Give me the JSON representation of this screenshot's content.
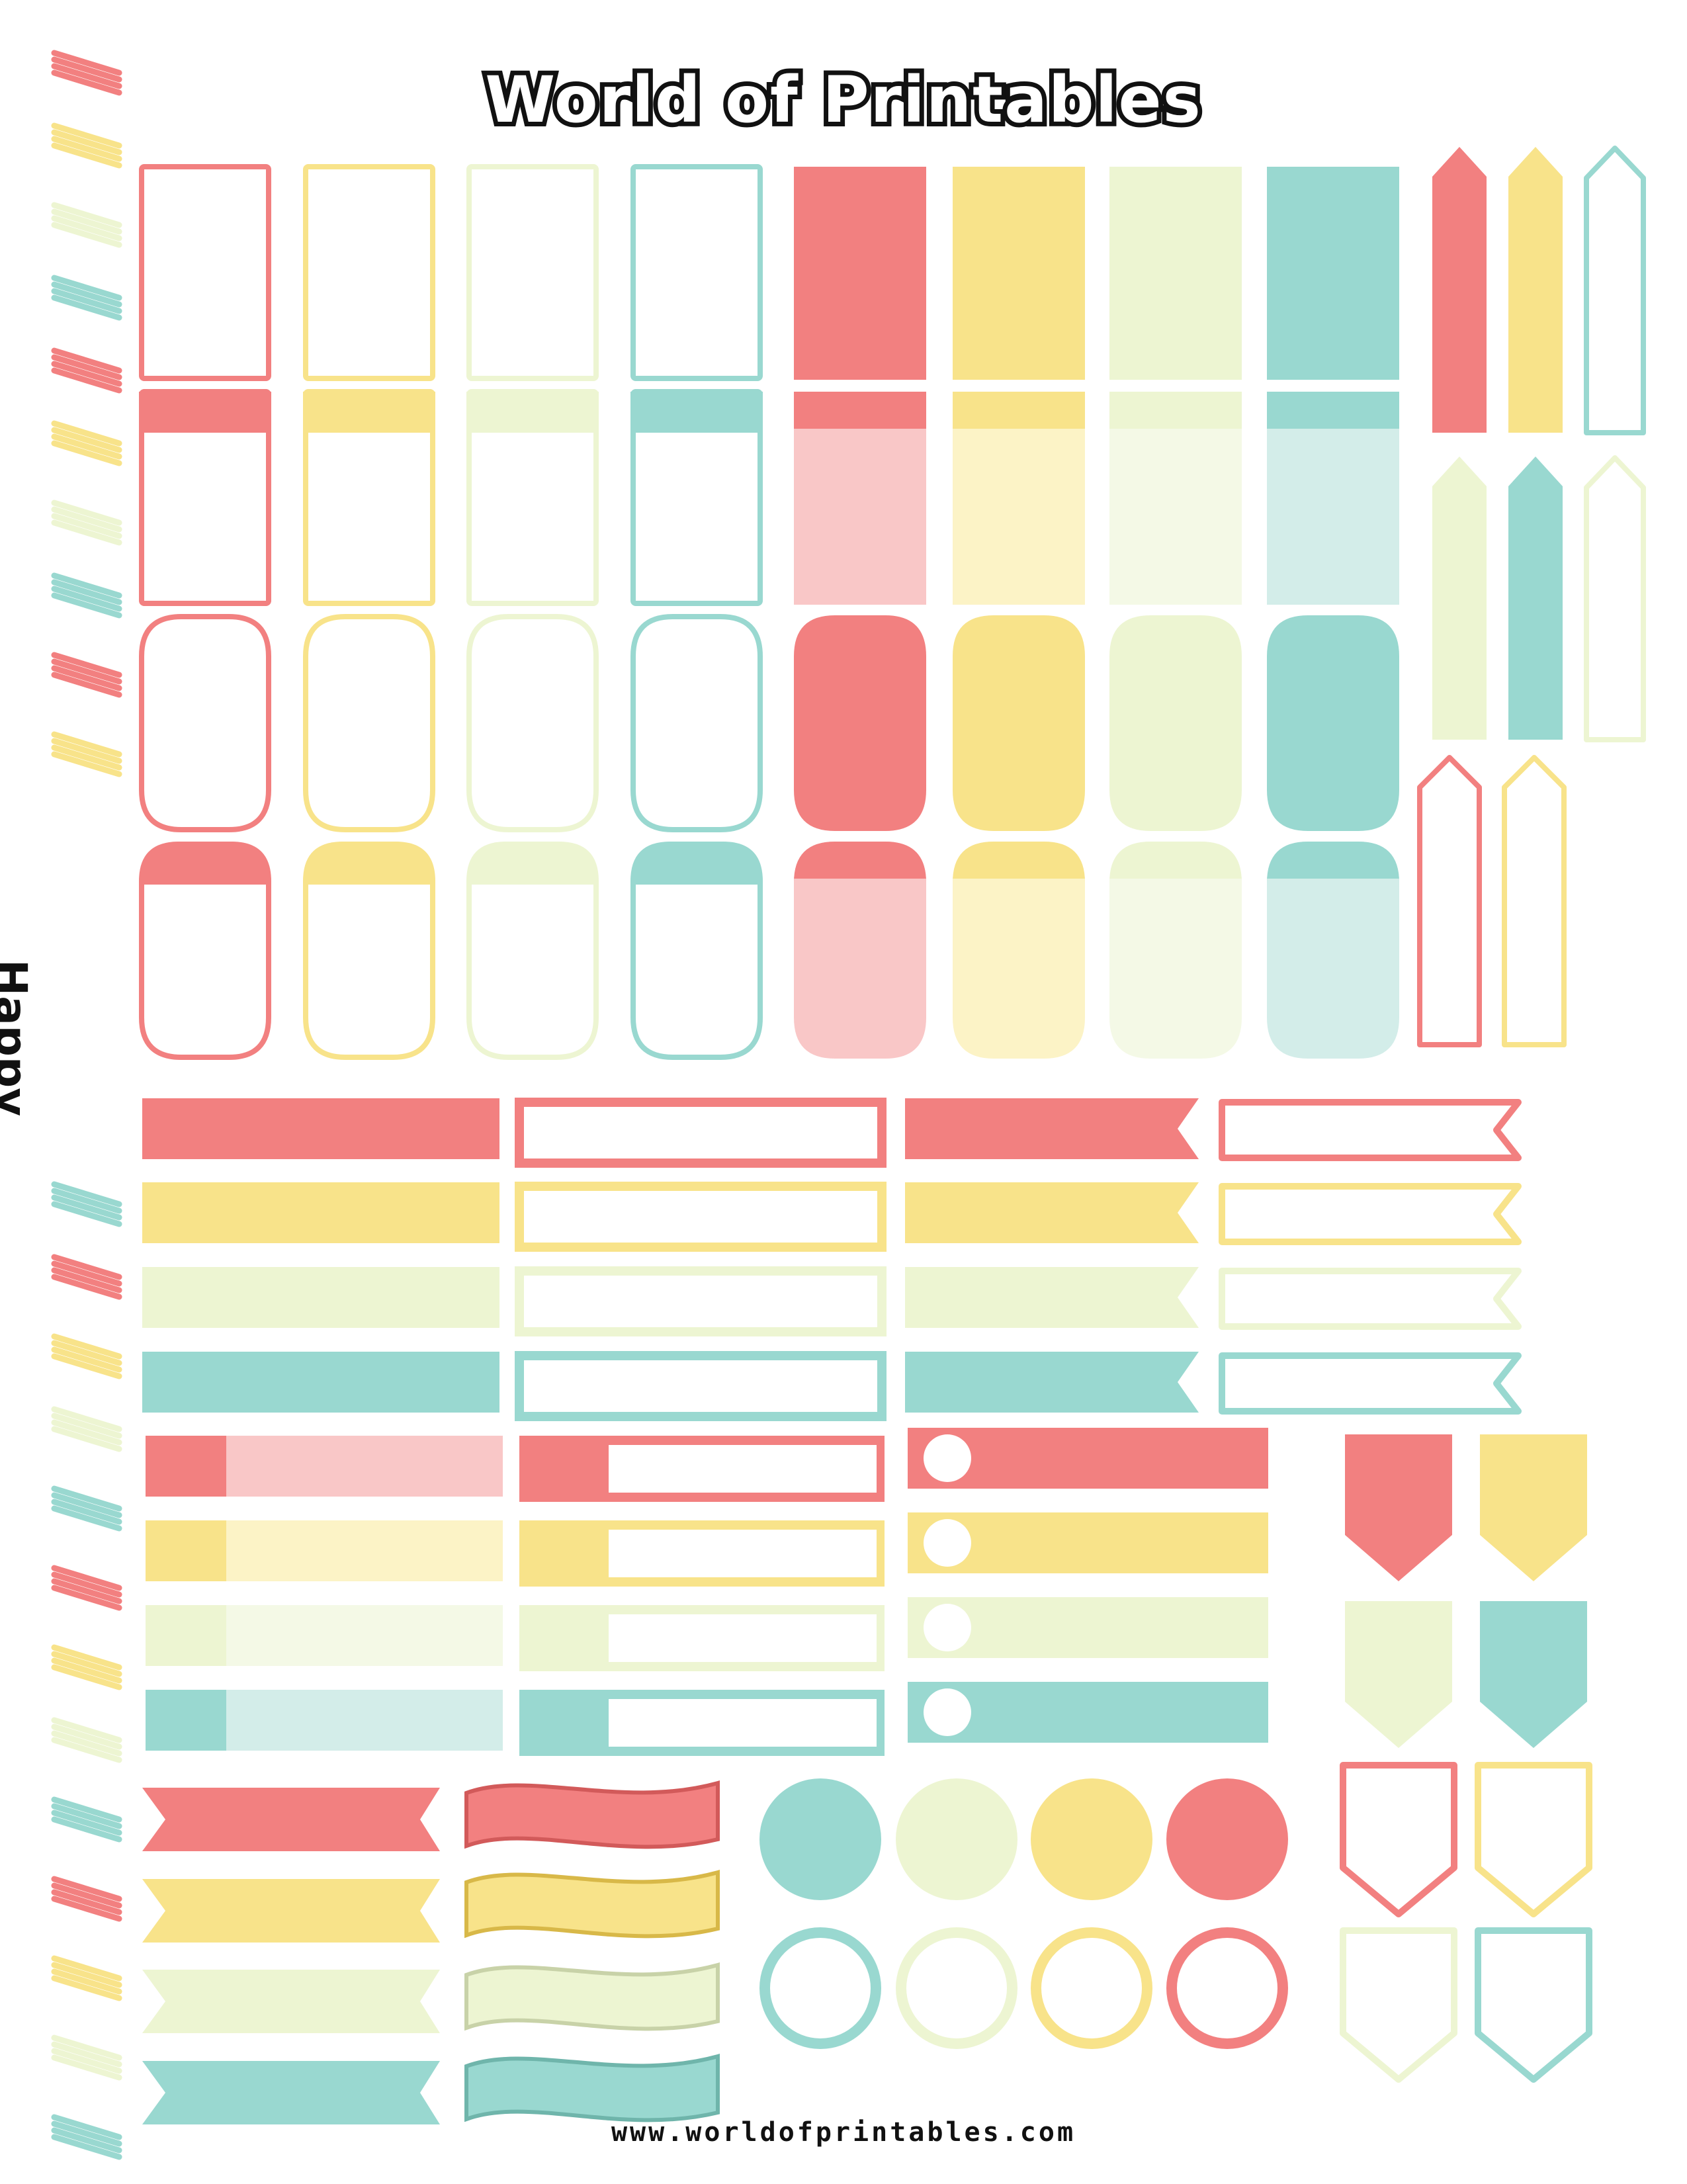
{
  "header": {
    "title": "World of Printables"
  },
  "side_text": {
    "label": "Happy"
  },
  "footer": {
    "url": "www.worldofprintables.com"
  },
  "colors": {
    "coral": "#F28080",
    "yellow": "#F8E38A",
    "cream": "#EDF5D2",
    "teal": "#99D8D0",
    "coral_light": "#F9C7C7",
    "yellow_light": "#FCF3C6",
    "cream_light": "#F4F9E6",
    "teal_light": "#D3EDE9"
  },
  "stickers": {
    "palette_order": [
      "coral",
      "yellow",
      "cream",
      "teal"
    ],
    "circle_order": [
      "teal",
      "cream",
      "yellow",
      "coral"
    ],
    "sets": [
      "outlined-rectangle",
      "filled-rectangle",
      "pennant-arrow",
      "header-box",
      "rounded-box",
      "label-bar",
      "checkbox-bar",
      "flag-banner",
      "shield-tab",
      "ribbon",
      "dot-circle"
    ]
  }
}
